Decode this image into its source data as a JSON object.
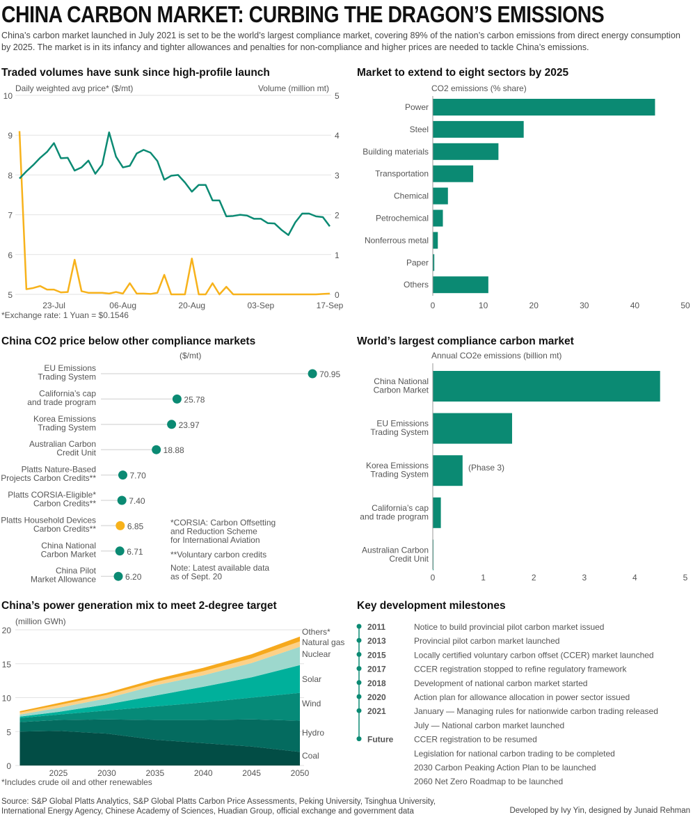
{
  "header": {
    "title": "CHINA CARBON MARKET: CURBING THE DRAGON’S EMISSIONS",
    "subtitle": "China’s carbon market launched in July 2021 is set to be the world’s largest compliance market, covering 89% of the nation’s carbon emissions from direct energy consumption by 2025. The market is in its infancy and tighter allowances and penalties for non-compliance and higher prices are needed to tackle China’s emissions."
  },
  "colors": {
    "green": "#0b8a73",
    "orange": "#f7b21b"
  },
  "chart_data": [
    {
      "type": "line",
      "title": "Traded volumes have sunk since high-profile launch",
      "series": [
        {
          "name": "Daily weighted avg price* ($/mt)",
          "axis": "left",
          "values": [
            7.91,
            8.09,
            8.25,
            8.43,
            8.58,
            8.8,
            8.42,
            8.43,
            8.11,
            8.19,
            8.36,
            8.03,
            8.26,
            9.07,
            8.46,
            8.19,
            8.23,
            8.54,
            8.63,
            8.56,
            8.35,
            7.88,
            7.98,
            8.0,
            7.81,
            7.58,
            7.75,
            7.75,
            7.36,
            7.36,
            6.96,
            6.97,
            7.0,
            6.98,
            6.9,
            6.9,
            6.79,
            6.78,
            6.62,
            6.49,
            6.81,
            7.03,
            7.03,
            6.96,
            6.94,
            6.71
          ]
        },
        {
          "name": "Volume (million mt)",
          "axis": "right",
          "values": [
            4.1,
            0.13,
            0.16,
            0.21,
            0.12,
            0.12,
            0.05,
            0.06,
            0.87,
            0.08,
            0.04,
            0.04,
            0.04,
            0.02,
            0.06,
            0.02,
            0.28,
            0.02,
            0.02,
            0.01,
            0.04,
            0.49,
            0,
            0,
            0,
            0.9,
            0,
            0,
            0.28,
            0,
            0.19,
            0,
            0,
            0,
            0,
            0,
            0,
            0,
            0,
            0,
            0,
            0,
            0,
            0,
            0.01,
            0.02
          ]
        }
      ],
      "xticks": [
        {
          "index": 5,
          "label": "23-Jul"
        },
        {
          "index": 15,
          "label": "06-Aug"
        },
        {
          "index": 25,
          "label": "20-Aug"
        },
        {
          "index": 35,
          "label": "03-Sep"
        },
        {
          "index": 45,
          "label": "17-Sep"
        }
      ],
      "ylim_left": [
        5,
        10
      ],
      "yticks_left": [
        "10",
        "9",
        "8",
        "7",
        "6",
        "5"
      ],
      "ylim_right": [
        0,
        5
      ],
      "yticks_right": [
        "5",
        "4",
        "3",
        "2",
        "1",
        "0"
      ],
      "footnote": "*Exchange rate: 1 Yuan = $0.1546"
    },
    {
      "type": "bar",
      "title": "Market to extend to eight sectors by 2025",
      "xlabel": "CO2 emissions (% share)",
      "categories": [
        "Power",
        "Steel",
        "Building materials",
        "Transportation",
        "Chemical",
        "Petrochemical",
        "Nonferrous metal",
        "Paper",
        "Others"
      ],
      "values": [
        44,
        18,
        13,
        8,
        3,
        2,
        1,
        0.3,
        11
      ],
      "xlim": [
        0,
        50
      ],
      "xticks": [
        "0",
        "10",
        "20",
        "30",
        "40",
        "50"
      ]
    },
    {
      "type": "scatter",
      "title": "China CO2 price below other compliance markets",
      "xlabel": "($/mt)",
      "categories": [
        "EU Emissions\nTrading System",
        "California’s cap\nand trade program",
        "Korea Emissions\nTrading System",
        "Australian Carbon\nCredit Unit",
        "Platts Nature-Based\nProjects Carbon Credits**",
        "Platts CORSIA-Eligible*\nCarbon Credits**",
        "Platts Household Devices\nCarbon Credits**",
        "China National\nCarbon Market",
        "China Pilot\nMarket Allowance"
      ],
      "values": [
        70.95,
        25.78,
        23.97,
        18.88,
        7.7,
        7.4,
        6.85,
        6.71,
        6.2
      ],
      "labels": [
        "70.95",
        "25.78",
        "23.97",
        "18.88",
        "7.70",
        "7.40",
        "6.85",
        "6.71",
        "6.20"
      ],
      "highlight_index": 6,
      "notes": [
        "*CORSIA: Carbon Offsetting\nand Reduction Scheme\nfor International Aviation",
        "**Voluntary carbon credits",
        "Note: Latest available data\nas of Sept. 20"
      ]
    },
    {
      "type": "bar",
      "title": "World’s largest compliance carbon market",
      "xlabel": "Annual CO2e emissions (billion mt)",
      "categories": [
        "China National\nCarbon Market",
        "EU Emissions\nTrading System",
        "Korea Emissions\nTrading System",
        "California’s cap\nand trade program",
        "Australian Carbon\nCredit Unit"
      ],
      "values": [
        4.5,
        1.57,
        0.59,
        0.16,
        0.01
      ],
      "annotation": "(Phase 3)",
      "xlim": [
        0,
        5
      ],
      "xticks": [
        "0",
        "1",
        "2",
        "3",
        "4",
        "5"
      ]
    },
    {
      "type": "area",
      "title": "China’s power generation mix to meet 2-degree target",
      "ylabel": "(million GWh)",
      "x": [
        2021,
        2025,
        2030,
        2035,
        2040,
        2045,
        2050
      ],
      "series": [
        {
          "name": "Coal",
          "color": "#024d45",
          "values": [
            5.0,
            5.1,
            4.7,
            3.8,
            3.3,
            2.8,
            2.0
          ]
        },
        {
          "name": "Hydro",
          "color": "#046b5f",
          "values": [
            1.4,
            1.6,
            2.1,
            2.9,
            3.4,
            4.0,
            4.6
          ]
        },
        {
          "name": "Wind",
          "color": "#068a78",
          "values": [
            0.6,
            0.8,
            1.3,
            2.0,
            2.6,
            3.2,
            4.1
          ]
        },
        {
          "name": "Solar",
          "color": "#00b09b",
          "values": [
            0.2,
            0.4,
            0.9,
            1.6,
            2.3,
            3.0,
            4.1
          ]
        },
        {
          "name": "Nuclear",
          "color": "#9dd8cd",
          "values": [
            0.3,
            0.6,
            0.9,
            1.5,
            1.7,
            2.1,
            2.7
          ]
        },
        {
          "name": "Natural gas",
          "color": "#fcd188",
          "values": [
            0.3,
            0.4,
            0.5,
            0.5,
            0.6,
            0.7,
            0.8
          ]
        },
        {
          "name": "Others*",
          "color": "#f6a91d",
          "values": [
            0.2,
            0.3,
            0.3,
            0.4,
            0.5,
            0.6,
            0.7
          ]
        }
      ],
      "ylim": [
        0,
        20
      ],
      "yticks": [
        "20",
        "15",
        "10",
        "5",
        "0"
      ],
      "xticks": [
        "2025",
        "2030",
        "2035",
        "2040",
        "2045",
        "2050"
      ],
      "footnote": "*Includes crude oil and other renewables"
    }
  ],
  "milestones": {
    "title": "Key development milestones",
    "items": [
      {
        "year": "2011",
        "text": "Notice to build provincial pilot carbon market issued"
      },
      {
        "year": "2013",
        "text": "Provincial pilot carbon market launched"
      },
      {
        "year": "2015",
        "text": "Locally certified voluntary carbon offset (CCER) market launched"
      },
      {
        "year": "2017",
        "text": "CCER registration stopped to refine regulatory framework"
      },
      {
        "year": "2018",
        "text": "Development of national carbon market started"
      },
      {
        "year": "2020",
        "text": "Action plan for allowance allocation in power sector issued"
      },
      {
        "year": "2021",
        "text": "January — Managing rules for nationwide carbon trading released"
      },
      {
        "year": "",
        "text": "July — National carbon market launched"
      },
      {
        "year": "Future",
        "text": "CCER registration to be resumed"
      },
      {
        "year": "",
        "text": "Legislation for national carbon trading to be completed"
      },
      {
        "year": "",
        "text": "2030 Carbon Peaking Action Plan to be launched"
      },
      {
        "year": "",
        "text": "2060 Net Zero Roadmap to be launched"
      }
    ]
  },
  "footer": {
    "source": "Source: S&P Global Platts Analytics, S&P Global Platts Carbon Price Assessments, Peking University, Tsinghua University,\nInternational Energy Agency, Chinese Academy of Sciences, Huadian Group, official exchange and government data",
    "credit": "Developed by Ivy Yin, designed by Junaid Rehman"
  }
}
